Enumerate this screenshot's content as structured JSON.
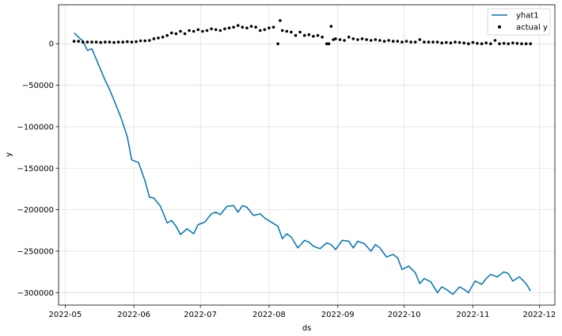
{
  "chart_data": {
    "type": "line",
    "xlabel": "ds",
    "ylabel": "y",
    "x_ticks": [
      "2022-05",
      "2022-06",
      "2022-07",
      "2022-08",
      "2022-09",
      "2022-10",
      "2022-11",
      "2022-12"
    ],
    "y_ticks": [
      0,
      -50000,
      -100000,
      -150000,
      -200000,
      -250000,
      -300000
    ],
    "y_tick_labels": [
      "0",
      "−50000",
      "−100000",
      "−150000",
      "−200000",
      "−250000",
      "−300000"
    ],
    "xlim": [
      "2022-04-28",
      "2022-12-08"
    ],
    "ylim": [
      -315000,
      47000
    ],
    "grid": true,
    "legend": "top-right",
    "colors": {
      "yhat": "#0072B2",
      "actual": "#000000",
      "grid": "#e0e0e0"
    },
    "series": [
      {
        "name": "yhat1",
        "type": "line",
        "x": [
          "2022-05-05",
          "2022-05-09",
          "2022-05-11",
          "2022-05-13",
          "2022-05-16",
          "2022-05-19",
          "2022-05-21",
          "2022-05-23",
          "2022-05-26",
          "2022-05-29",
          "2022-05-31",
          "2022-06-03",
          "2022-06-06",
          "2022-06-08",
          "2022-06-10",
          "2022-06-13",
          "2022-06-16",
          "2022-06-18",
          "2022-06-20",
          "2022-06-22",
          "2022-06-25",
          "2022-06-28",
          "2022-06-30",
          "2022-07-03",
          "2022-07-06",
          "2022-07-08",
          "2022-07-10",
          "2022-07-13",
          "2022-07-16",
          "2022-07-18",
          "2022-07-20",
          "2022-07-22",
          "2022-07-25",
          "2022-07-28",
          "2022-07-30",
          "2022-08-02",
          "2022-08-05",
          "2022-08-07",
          "2022-08-09",
          "2022-08-11",
          "2022-08-14",
          "2022-08-17",
          "2022-08-19",
          "2022-08-21",
          "2022-08-24",
          "2022-08-27",
          "2022-08-29",
          "2022-08-31",
          "2022-09-03",
          "2022-09-06",
          "2022-09-08",
          "2022-09-10",
          "2022-09-13",
          "2022-09-16",
          "2022-09-18",
          "2022-09-20",
          "2022-09-23",
          "2022-09-26",
          "2022-09-28",
          "2022-09-30",
          "2022-10-03",
          "2022-10-06",
          "2022-10-08",
          "2022-10-10",
          "2022-10-13",
          "2022-10-16",
          "2022-10-18",
          "2022-10-20",
          "2022-10-23",
          "2022-10-26",
          "2022-10-28",
          "2022-10-30",
          "2022-11-02",
          "2022-11-05",
          "2022-11-07",
          "2022-11-09",
          "2022-11-12",
          "2022-11-15",
          "2022-11-17",
          "2022-11-19",
          "2022-11-22",
          "2022-11-25",
          "2022-11-27"
        ],
        "y": [
          13000,
          3000,
          -8000,
          -6000,
          -25000,
          -44000,
          -55000,
          -68000,
          -88000,
          -112000,
          -140000,
          -143000,
          -165000,
          -185000,
          -186000,
          -196000,
          -216000,
          -213000,
          -220000,
          -230000,
          -223000,
          -229000,
          -218000,
          -215000,
          -205000,
          -203000,
          -206000,
          -196000,
          -195000,
          -203000,
          -195000,
          -197000,
          -207000,
          -205000,
          -210000,
          -215000,
          -220000,
          -235000,
          -229000,
          -233000,
          -246000,
          -237000,
          -239000,
          -244000,
          -247000,
          -240000,
          -242000,
          -248000,
          -237000,
          -238000,
          -246000,
          -238000,
          -241000,
          -250000,
          -242000,
          -246000,
          -257000,
          -254000,
          -258000,
          -272000,
          -268000,
          -276000,
          -289000,
          -283000,
          -287000,
          -300000,
          -293000,
          -296000,
          -302000,
          -293000,
          -296000,
          -300000,
          -286000,
          -290000,
          -283000,
          -278000,
          -281000,
          -275000,
          -277000,
          -286000,
          -281000,
          -289000,
          -298000
        ]
      },
      {
        "name": "actual y",
        "type": "scatter",
        "x": [
          "2022-05-05",
          "2022-05-07",
          "2022-05-09",
          "2022-05-11",
          "2022-05-13",
          "2022-05-15",
          "2022-05-17",
          "2022-05-19",
          "2022-05-21",
          "2022-05-23",
          "2022-05-25",
          "2022-05-27",
          "2022-05-29",
          "2022-05-31",
          "2022-06-02",
          "2022-06-04",
          "2022-06-06",
          "2022-06-08",
          "2022-06-10",
          "2022-06-12",
          "2022-06-14",
          "2022-06-16",
          "2022-06-18",
          "2022-06-20",
          "2022-06-22",
          "2022-06-24",
          "2022-06-26",
          "2022-06-28",
          "2022-06-30",
          "2022-07-02",
          "2022-07-04",
          "2022-07-06",
          "2022-07-08",
          "2022-07-10",
          "2022-07-12",
          "2022-07-14",
          "2022-07-16",
          "2022-07-18",
          "2022-07-20",
          "2022-07-22",
          "2022-07-24",
          "2022-07-26",
          "2022-07-28",
          "2022-07-30",
          "2022-08-01",
          "2022-08-03",
          "2022-08-05",
          "2022-08-06",
          "2022-08-07",
          "2022-08-09",
          "2022-08-11",
          "2022-08-13",
          "2022-08-15",
          "2022-08-17",
          "2022-08-19",
          "2022-08-21",
          "2022-08-23",
          "2022-08-25",
          "2022-08-27",
          "2022-08-28",
          "2022-08-29",
          "2022-08-30",
          "2022-08-31",
          "2022-09-02",
          "2022-09-04",
          "2022-09-06",
          "2022-09-08",
          "2022-09-10",
          "2022-09-12",
          "2022-09-14",
          "2022-09-16",
          "2022-09-18",
          "2022-09-20",
          "2022-09-22",
          "2022-09-24",
          "2022-09-26",
          "2022-09-28",
          "2022-09-30",
          "2022-10-02",
          "2022-10-04",
          "2022-10-06",
          "2022-10-08",
          "2022-10-10",
          "2022-10-12",
          "2022-10-14",
          "2022-10-16",
          "2022-10-18",
          "2022-10-20",
          "2022-10-22",
          "2022-10-24",
          "2022-10-26",
          "2022-10-28",
          "2022-10-30",
          "2022-11-01",
          "2022-11-03",
          "2022-11-05",
          "2022-11-07",
          "2022-11-09",
          "2022-11-11",
          "2022-11-13",
          "2022-11-15",
          "2022-11-17",
          "2022-11-19",
          "2022-11-21",
          "2022-11-23",
          "2022-11-25",
          "2022-11-27"
        ],
        "y": [
          3000,
          3000,
          2000,
          2000,
          2000,
          2000,
          1500,
          2000,
          2000,
          1500,
          2000,
          2000,
          2500,
          2000,
          2500,
          3500,
          3500,
          4000,
          6000,
          7000,
          8000,
          10000,
          13000,
          12000,
          15000,
          12000,
          16000,
          15000,
          17000,
          15000,
          16000,
          18000,
          17000,
          16000,
          18000,
          19000,
          20000,
          22000,
          20000,
          19000,
          21000,
          20000,
          16000,
          17000,
          19000,
          20000,
          0,
          28000,
          16000,
          15000,
          14000,
          10000,
          14000,
          10000,
          11000,
          9000,
          10000,
          8000,
          0,
          0,
          21000,
          5000,
          6000,
          5000,
          4000,
          8000,
          6000,
          5000,
          6000,
          5000,
          4000,
          5000,
          4000,
          3000,
          4000,
          3000,
          3000,
          2000,
          3000,
          2000,
          2000,
          5000,
          2000,
          2000,
          2000,
          2000,
          1000,
          1500,
          1000,
          2000,
          1500,
          1000,
          0,
          1500,
          500,
          0,
          1000,
          0,
          4000,
          0,
          500,
          0,
          1000,
          500,
          0,
          0,
          0
        ]
      }
    ]
  }
}
